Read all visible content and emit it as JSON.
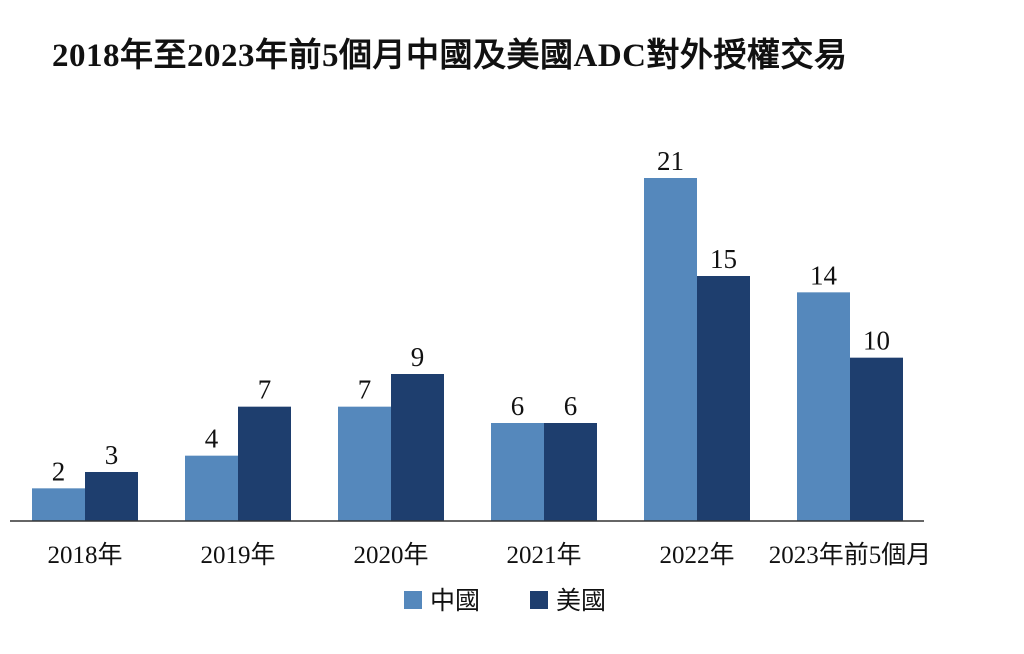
{
  "chart_data": {
    "type": "bar",
    "title": "2018年至2023年前5個月中國及美國ADC對外授權交易",
    "categories": [
      "2018年",
      "2019年",
      "2020年",
      "2021年",
      "2022年",
      "2023年前5個月"
    ],
    "series": [
      {
        "name": "中國",
        "color": "#5588bc",
        "values": [
          2,
          4,
          7,
          6,
          21,
          14
        ]
      },
      {
        "name": "美國",
        "color": "#1e3e6e",
        "values": [
          3,
          7,
          9,
          6,
          15,
          10
        ]
      }
    ],
    "ylim": [
      0,
      21
    ],
    "grid": false,
    "legend_position": "bottom"
  }
}
